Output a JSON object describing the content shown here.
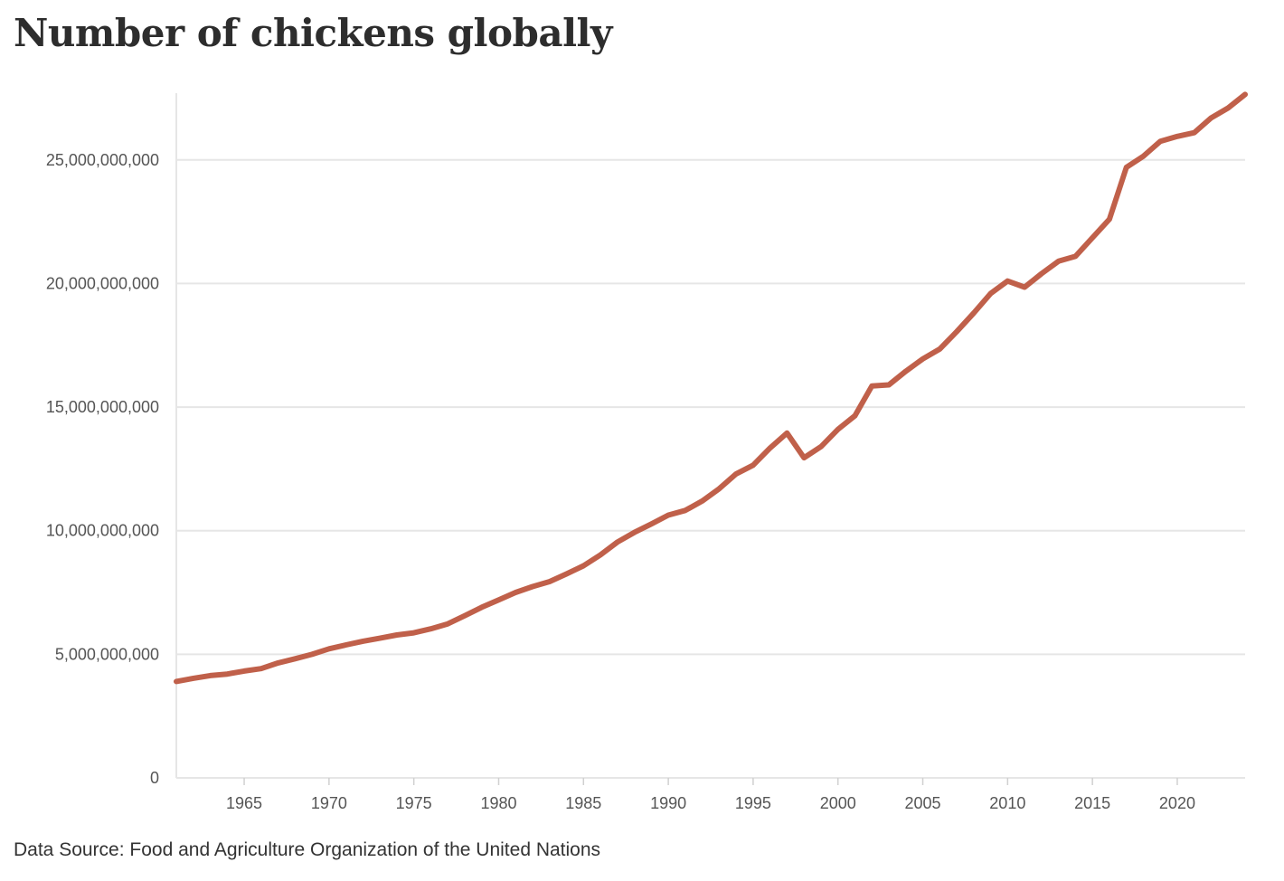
{
  "chart_data": {
    "type": "line",
    "title": "Number of chickens globally",
    "source": "Data Source: Food and Agriculture Organization of the United Nations",
    "xlabel": "",
    "ylabel": "",
    "xlim": [
      1961,
      2024
    ],
    "ylim": [
      0,
      27700000000
    ],
    "grid": true,
    "legend": "none",
    "line_color": "#c0604a",
    "y_ticks": [
      0,
      5000000000,
      10000000000,
      15000000000,
      20000000000,
      25000000000
    ],
    "y_tick_labels": [
      "0",
      "5,000,000,000",
      "10,000,000,000",
      "15,000,000,000",
      "20,000,000,000",
      "25,000,000,000"
    ],
    "x_ticks": [
      1965,
      1970,
      1975,
      1980,
      1985,
      1990,
      1995,
      2000,
      2005,
      2010,
      2015,
      2020
    ],
    "x_tick_labels": [
      "1965",
      "1970",
      "1975",
      "1980",
      "1985",
      "1990",
      "1995",
      "2000",
      "2005",
      "2010",
      "2015",
      "2020"
    ],
    "series": [
      {
        "name": "Chickens",
        "x": [
          1961,
          1962,
          1963,
          1964,
          1965,
          1966,
          1967,
          1968,
          1969,
          1970,
          1971,
          1972,
          1973,
          1974,
          1975,
          1976,
          1977,
          1978,
          1979,
          1980,
          1981,
          1982,
          1983,
          1984,
          1985,
          1986,
          1987,
          1988,
          1989,
          1990,
          1991,
          1992,
          1993,
          1994,
          1995,
          1996,
          1997,
          1998,
          1999,
          2000,
          2001,
          2002,
          2003,
          2004,
          2005,
          2006,
          2007,
          2008,
          2009,
          2010,
          2011,
          2012,
          2013,
          2014,
          2015,
          2016,
          2017,
          2018,
          2019,
          2020,
          2021,
          2022,
          2023,
          2024
        ],
        "values": [
          3900000000,
          4030000000,
          4140000000,
          4200000000,
          4320000000,
          4420000000,
          4650000000,
          4820000000,
          5000000000,
          5220000000,
          5380000000,
          5530000000,
          5650000000,
          5780000000,
          5870000000,
          6030000000,
          6230000000,
          6560000000,
          6900000000,
          7200000000,
          7500000000,
          7740000000,
          7940000000,
          8250000000,
          8580000000,
          9020000000,
          9540000000,
          9930000000,
          10270000000,
          10630000000,
          10820000000,
          11200000000,
          11700000000,
          12300000000,
          12650000000,
          13350000000,
          13950000000,
          12950000000,
          13400000000,
          14100000000,
          14650000000,
          15850000000,
          15900000000,
          16450000000,
          16950000000,
          17350000000,
          18050000000,
          18800000000,
          19600000000,
          20100000000,
          19850000000,
          20400000000,
          20900000000,
          21100000000,
          21850000000,
          22600000000,
          24700000000,
          25150000000,
          25750000000,
          25950000000,
          26100000000,
          26700000000,
          27100000000,
          27650000000
        ]
      }
    ]
  }
}
